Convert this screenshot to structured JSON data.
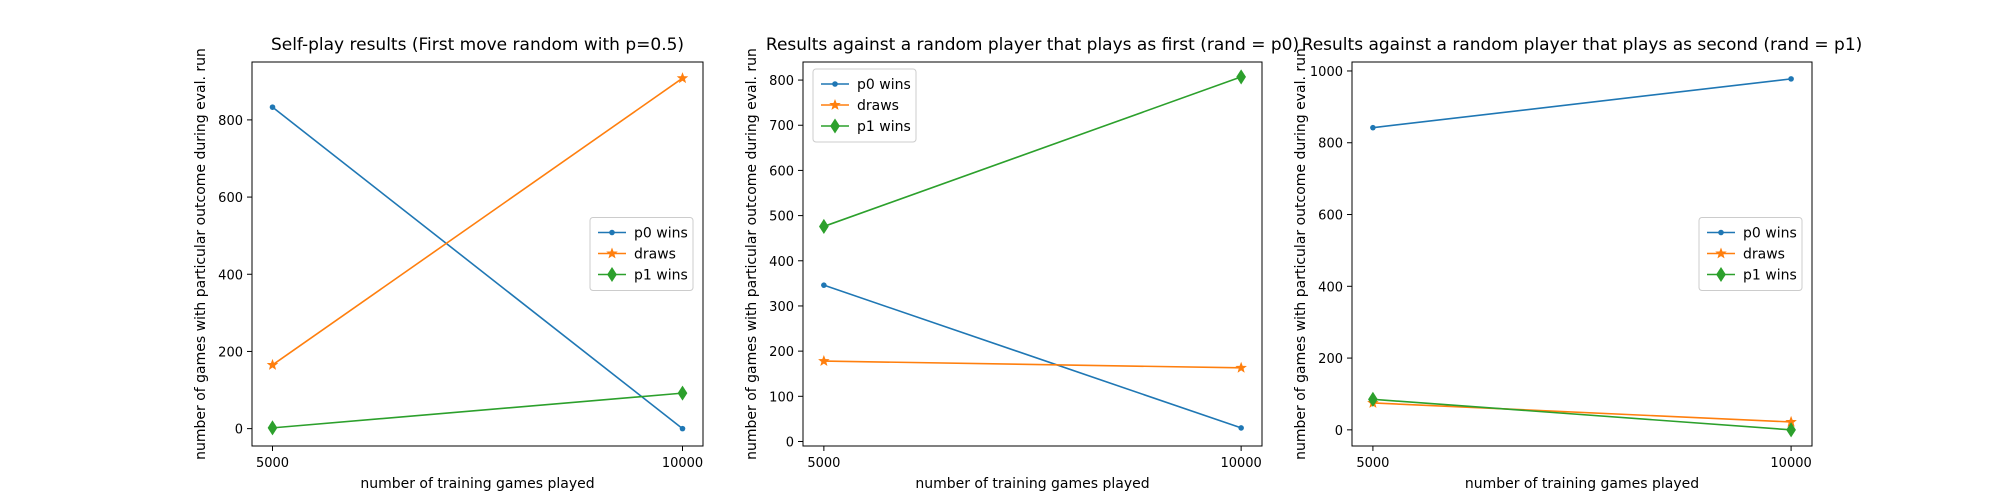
{
  "chart_data": [
    {
      "type": "line",
      "title": "Self-play results (First move random with p=0.5)",
      "xlabel": "number of training games played",
      "ylabel": "number of games with particular outcome during eval. run",
      "x": [
        5000,
        10000
      ],
      "xticks": [
        5000,
        10000
      ],
      "yticks": [
        0,
        200,
        400,
        600,
        800
      ],
      "xlim": [
        4750,
        10250
      ],
      "ylim": [
        -45,
        950
      ],
      "legend": "center-right",
      "series": [
        {
          "name": "p0 wins",
          "values": [
            833,
            0
          ],
          "color": "#1f77b4",
          "marker": "point"
        },
        {
          "name": "draws",
          "values": [
            165,
            908
          ],
          "color": "#ff7f0e",
          "marker": "star"
        },
        {
          "name": "p1 wins",
          "values": [
            2,
            92
          ],
          "color": "#2ca02c",
          "marker": "thin-diamond"
        }
      ]
    },
    {
      "type": "line",
      "title": "Results against a random player that plays as first (rand = p0)",
      "xlabel": "number of training games played",
      "ylabel": "number of games with particular outcome during eval. run",
      "x": [
        5000,
        10000
      ],
      "xticks": [
        5000,
        10000
      ],
      "yticks": [
        0,
        100,
        200,
        300,
        400,
        500,
        600,
        700,
        800
      ],
      "xlim": [
        4750,
        10250
      ],
      "ylim": [
        -10,
        840
      ],
      "legend": "top-left",
      "series": [
        {
          "name": "p0 wins",
          "values": [
            346,
            30
          ],
          "color": "#1f77b4",
          "marker": "point"
        },
        {
          "name": "draws",
          "values": [
            178,
            163
          ],
          "color": "#ff7f0e",
          "marker": "star"
        },
        {
          "name": "p1 wins",
          "values": [
            476,
            807
          ],
          "color": "#2ca02c",
          "marker": "thin-diamond"
        }
      ]
    },
    {
      "type": "line",
      "title": "Results against a random player that plays as second (rand = p1)",
      "xlabel": "number of training games played",
      "ylabel": "number of games with particular outcome during eval. run",
      "x": [
        5000,
        10000
      ],
      "xticks": [
        5000,
        10000
      ],
      "yticks": [
        0,
        200,
        400,
        600,
        800,
        1000
      ],
      "xlim": [
        4750,
        10250
      ],
      "ylim": [
        -45,
        1025
      ],
      "legend": "center-right",
      "series": [
        {
          "name": "p0 wins",
          "values": [
            842,
            978
          ],
          "color": "#1f77b4",
          "marker": "point"
        },
        {
          "name": "draws",
          "values": [
            75,
            22
          ],
          "color": "#ff7f0e",
          "marker": "star"
        },
        {
          "name": "p1 wins",
          "values": [
            85,
            0
          ],
          "color": "#2ca02c",
          "marker": "thin-diamond"
        }
      ]
    }
  ]
}
